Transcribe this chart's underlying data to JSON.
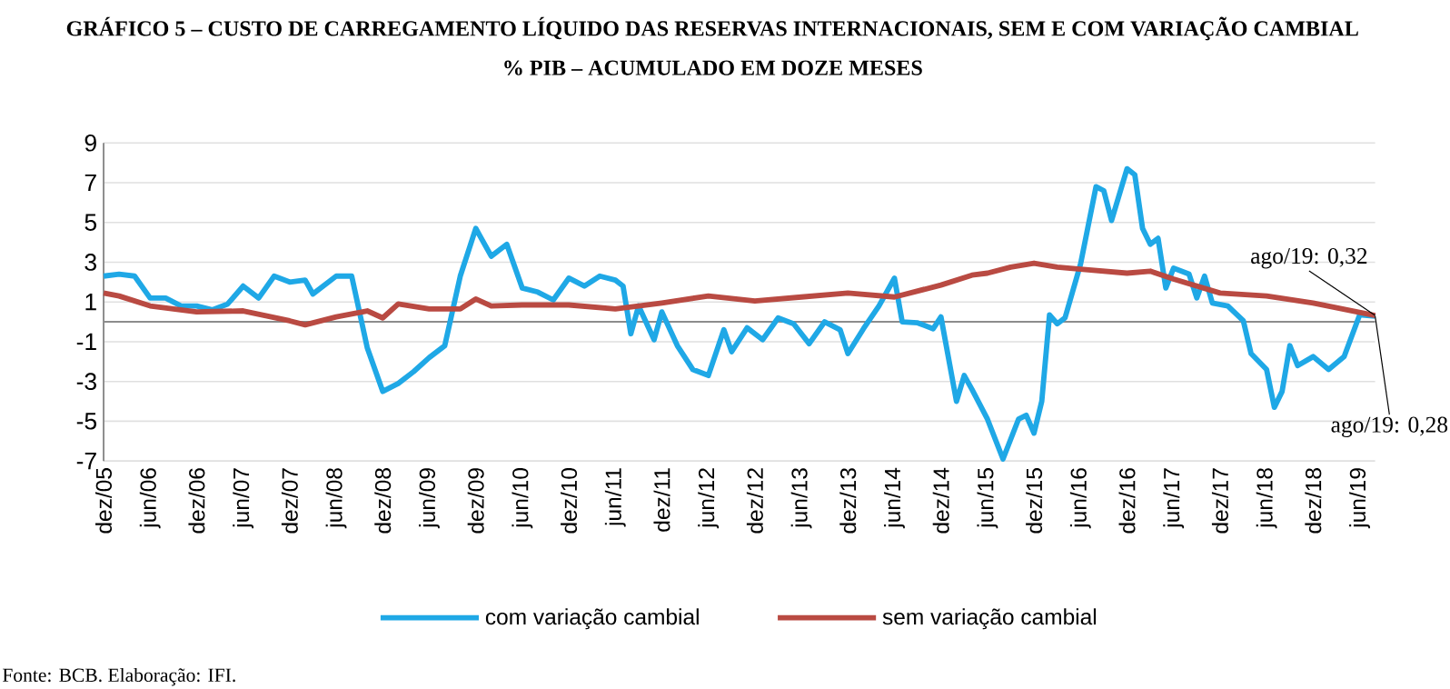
{
  "chart_data": {
    "type": "line",
    "title": "GRÁFICO 5 – CUSTO DE CARREGAMENTO LÍQUIDO DAS RESERVAS INTERNACIONAIS, SEM E COM VARIAÇÃO CAMBIAL",
    "subtitle": "% PIB – ACUMULADO EM DOZE MESES",
    "xlim": [
      "2005-12",
      "2019-08"
    ],
    "xticks": [
      {
        "value": "2005-12",
        "label": "dez/05"
      },
      {
        "value": "2006-06",
        "label": "jun/06"
      },
      {
        "value": "2006-12",
        "label": "dez/06"
      },
      {
        "value": "2007-06",
        "label": "jun/07"
      },
      {
        "value": "2007-12",
        "label": "dez/07"
      },
      {
        "value": "2008-06",
        "label": "jun/08"
      },
      {
        "value": "2008-12",
        "label": "dez/08"
      },
      {
        "value": "2009-06",
        "label": "jun/09"
      },
      {
        "value": "2009-12",
        "label": "dez/09"
      },
      {
        "value": "2010-06",
        "label": "jun/10"
      },
      {
        "value": "2010-12",
        "label": "dez/10"
      },
      {
        "value": "2011-06",
        "label": "jun/11"
      },
      {
        "value": "2011-12",
        "label": "dez/11"
      },
      {
        "value": "2012-06",
        "label": "jun/12"
      },
      {
        "value": "2012-12",
        "label": "dez/12"
      },
      {
        "value": "2013-06",
        "label": "jun/13"
      },
      {
        "value": "2013-12",
        "label": "dez/13"
      },
      {
        "value": "2014-06",
        "label": "jun/14"
      },
      {
        "value": "2014-12",
        "label": "dez/14"
      },
      {
        "value": "2015-06",
        "label": "jun/15"
      },
      {
        "value": "2015-12",
        "label": "dez/15"
      },
      {
        "value": "2016-06",
        "label": "jun/16"
      },
      {
        "value": "2016-12",
        "label": "dez/16"
      },
      {
        "value": "2017-06",
        "label": "jun/17"
      },
      {
        "value": "2017-12",
        "label": "dez/17"
      },
      {
        "value": "2018-06",
        "label": "jun/18"
      },
      {
        "value": "2018-12",
        "label": "dez/18"
      },
      {
        "value": "2019-06",
        "label": "jun/19"
      }
    ],
    "ylim": [
      -7,
      9
    ],
    "yticks": [
      -7,
      -5,
      -3,
      -1,
      1,
      3,
      5,
      7,
      9
    ],
    "grid": "y",
    "legend": "bottom",
    "series": [
      {
        "name": "com variação cambial",
        "color": "#1FA8E6",
        "x": [
          "2005-12",
          "2006-02",
          "2006-04",
          "2006-06",
          "2006-08",
          "2006-10",
          "2006-12",
          "2007-02",
          "2007-04",
          "2007-06",
          "2007-08",
          "2007-10",
          "2007-12",
          "2008-02",
          "2008-03",
          "2008-06",
          "2008-08",
          "2008-10",
          "2008-12",
          "2009-02",
          "2009-04",
          "2009-06",
          "2009-08",
          "2009-10",
          "2009-12",
          "2010-02",
          "2010-04",
          "2010-06",
          "2010-08",
          "2010-10",
          "2010-12",
          "2011-02",
          "2011-04",
          "2011-06",
          "2011-07",
          "2011-08",
          "2011-09",
          "2011-11",
          "2011-12",
          "2012-02",
          "2012-04",
          "2012-06",
          "2012-08",
          "2012-09",
          "2012-11",
          "2013-01",
          "2013-03",
          "2013-05",
          "2013-07",
          "2013-09",
          "2013-11",
          "2013-12",
          "2014-02",
          "2014-04",
          "2014-06",
          "2014-07",
          "2014-09",
          "2014-11",
          "2014-12",
          "2015-02",
          "2015-03",
          "2015-04",
          "2015-06",
          "2015-08",
          "2015-10",
          "2015-11",
          "2015-12",
          "2016-01",
          "2016-02",
          "2016-03",
          "2016-04",
          "2016-06",
          "2016-08",
          "2016-09",
          "2016-10",
          "2016-12",
          "2017-01",
          "2017-02",
          "2017-03",
          "2017-04",
          "2017-05",
          "2017-06",
          "2017-08",
          "2017-09",
          "2017-10",
          "2017-11",
          "2018-01",
          "2018-03",
          "2018-04",
          "2018-06",
          "2018-07",
          "2018-08",
          "2018-09",
          "2018-10",
          "2018-12",
          "2019-02",
          "2019-04",
          "2019-06",
          "2019-08"
        ],
        "values": [
          2.3,
          2.4,
          2.3,
          1.2,
          1.2,
          0.8,
          0.8,
          0.6,
          0.9,
          1.8,
          1.2,
          2.3,
          2.0,
          2.1,
          1.4,
          2.3,
          2.3,
          -1.3,
          -3.5,
          -3.1,
          -2.5,
          -1.8,
          -1.2,
          2.3,
          4.7,
          3.3,
          3.9,
          1.7,
          1.5,
          1.1,
          2.2,
          1.8,
          2.3,
          2.1,
          1.8,
          -0.6,
          0.8,
          -0.9,
          0.5,
          -1.2,
          -2.4,
          -2.7,
          -0.4,
          -1.5,
          -0.3,
          -0.9,
          0.2,
          -0.1,
          -1.1,
          0.0,
          -0.4,
          -1.6,
          -0.35,
          0.8,
          2.2,
          0.0,
          -0.05,
          -0.35,
          0.25,
          -4.0,
          -2.7,
          -3.4,
          -4.9,
          -6.9,
          -4.9,
          -4.7,
          -5.6,
          -4.0,
          0.35,
          -0.1,
          0.2,
          2.9,
          6.8,
          6.6,
          5.1,
          7.7,
          7.4,
          4.7,
          3.9,
          4.2,
          1.7,
          2.7,
          2.4,
          1.2,
          2.3,
          0.95,
          0.8,
          0.05,
          -1.6,
          -2.4,
          -4.3,
          -3.5,
          -1.2,
          -2.2,
          -1.75,
          -2.4,
          -1.75,
          0.35,
          0.28
        ]
      },
      {
        "name": "sem variação cambial",
        "color": "#B94A42",
        "x": [
          "2005-12",
          "2006-02",
          "2006-06",
          "2006-12",
          "2007-06",
          "2007-12",
          "2008-02",
          "2008-06",
          "2008-10",
          "2008-12",
          "2009-02",
          "2009-06",
          "2009-10",
          "2009-12",
          "2010-02",
          "2010-06",
          "2010-12",
          "2011-06",
          "2011-12",
          "2012-06",
          "2012-12",
          "2013-06",
          "2013-12",
          "2014-06",
          "2014-12",
          "2015-04",
          "2015-06",
          "2015-09",
          "2015-12",
          "2016-03",
          "2016-06",
          "2016-12",
          "2017-03",
          "2017-06",
          "2017-12",
          "2018-06",
          "2018-12",
          "2019-08"
        ],
        "values": [
          1.45,
          1.3,
          0.8,
          0.5,
          0.55,
          0.05,
          -0.15,
          0.25,
          0.55,
          0.2,
          0.9,
          0.65,
          0.65,
          1.15,
          0.8,
          0.85,
          0.85,
          0.65,
          0.95,
          1.3,
          1.05,
          1.25,
          1.45,
          1.25,
          1.85,
          2.35,
          2.45,
          2.75,
          2.95,
          2.75,
          2.65,
          2.45,
          2.55,
          2.15,
          1.45,
          1.3,
          0.95,
          0.32
        ]
      }
    ],
    "annotations": [
      {
        "text": "ago/19: 0,32",
        "x": "2019-08",
        "y": 0.32
      },
      {
        "text": "ago/19: 0,28",
        "x": "2019-08",
        "y": 0.28
      },
      "Fonte: BCB. Elaboração: IFI."
    ]
  }
}
